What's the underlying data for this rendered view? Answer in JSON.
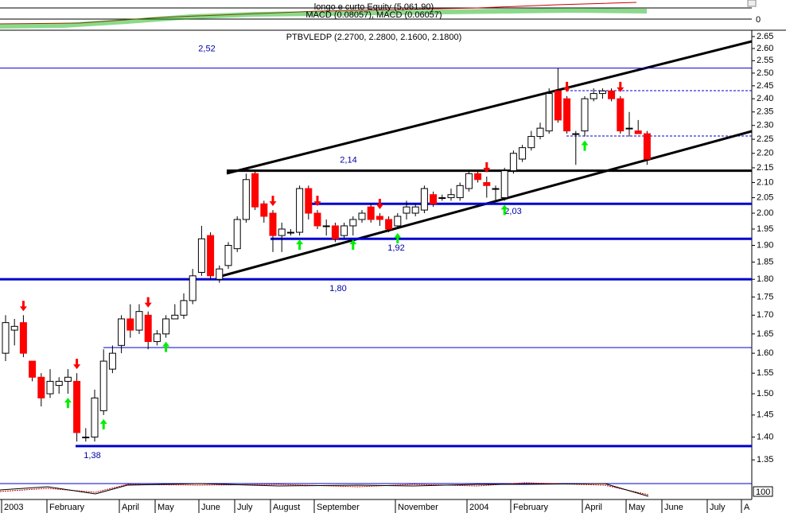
{
  "chart_data": {
    "type": "candlestick",
    "title": "PTBVLEDP (2.2700, 2.2800, 2.1600, 2.1800)",
    "log_scale": true,
    "up_color": "#ffffff",
    "down_color": "#ff0000",
    "ylim": [
      1.3,
      2.67
    ],
    "yticks": [
      2.65,
      {
        "value": 2.6,
        "label": "2.60"
      },
      2.55,
      {
        "value": 2.5,
        "label": "2.50"
      },
      2.45,
      {
        "value": 2.4,
        "label": "2.40"
      },
      2.35,
      {
        "value": 2.3,
        "label": "2.30"
      },
      2.25,
      {
        "value": 2.2,
        "label": "2.20"
      },
      2.15,
      {
        "value": 2.1,
        "label": "2.10"
      },
      2.05,
      {
        "value": 2,
        "label": "2.00"
      },
      1.95,
      {
        "value": 1.9,
        "label": "1.90"
      },
      1.85,
      {
        "value": 1.8,
        "label": "1.80"
      },
      1.75,
      {
        "value": 1.7,
        "label": "1.70"
      },
      1.65,
      {
        "value": 1.6,
        "label": "1.60"
      },
      1.55,
      {
        "value": 1.5,
        "label": "1.50"
      },
      1.45,
      {
        "value": 1.4,
        "label": "1.40"
      },
      1.35
    ],
    "x_labels": [
      "2003",
      "February",
      "April",
      "May",
      "June",
      "July",
      "August",
      "September",
      "November",
      "2004",
      "February",
      "April",
      "May",
      "June",
      "July",
      "A"
    ],
    "open": [
      1.6,
      1.66,
      1.68,
      1.58,
      1.54,
      1.5,
      1.52,
      1.53,
      1.53,
      1.4,
      1.4,
      1.46,
      1.56,
      1.62,
      1.69,
      1.66,
      1.7,
      1.63,
      1.65,
      1.69,
      1.7,
      1.74,
      1.82,
      1.93,
      1.8,
      1.84,
      1.89,
      1.98,
      2.13,
      2.03,
      2.0,
      1.93,
      1.94,
      1.94,
      2.08,
      2.0,
      1.96,
      1.96,
      1.93,
      1.96,
      1.98,
      2.02,
      1.99,
      1.98,
      1.96,
      2.0,
      2.0,
      2.01,
      2.06,
      2.05,
      2.05,
      2.05,
      2.08,
      2.13,
      2.1,
      2.08,
      2.05,
      2.14,
      2.18,
      2.22,
      2.26,
      2.28,
      2.43,
      2.4,
      2.27,
      2.28,
      2.4,
      2.42,
      2.43,
      2.4,
      2.29,
      2.28,
      2.27
    ],
    "high": [
      1.7,
      1.69,
      1.7,
      1.58,
      1.55,
      1.56,
      1.54,
      1.56,
      1.55,
      1.42,
      1.51,
      1.61,
      1.62,
      1.7,
      1.73,
      1.73,
      1.71,
      1.66,
      1.7,
      1.73,
      1.76,
      1.83,
      1.96,
      1.94,
      1.84,
      1.91,
      1.99,
      2.13,
      2.14,
      2.04,
      2.01,
      1.97,
      1.95,
      2.09,
      2.09,
      2.01,
      1.98,
      1.97,
      1.97,
      1.99,
      2.01,
      2.03,
      2.0,
      1.99,
      2.0,
      2.04,
      2.03,
      2.09,
      2.07,
      2.06,
      2.08,
      2.1,
      2.14,
      2.14,
      2.12,
      2.09,
      2.15,
      2.21,
      2.23,
      2.28,
      2.31,
      2.44,
      2.52,
      2.41,
      2.28,
      2.41,
      2.44,
      2.44,
      2.44,
      2.41,
      2.35,
      2.32,
      2.28
    ],
    "low": [
      1.58,
      1.62,
      1.59,
      1.53,
      1.47,
      1.49,
      1.5,
      1.5,
      1.39,
      1.39,
      1.39,
      1.45,
      1.55,
      1.6,
      1.64,
      1.65,
      1.61,
      1.62,
      1.64,
      1.69,
      1.69,
      1.73,
      1.81,
      1.8,
      1.79,
      1.83,
      1.88,
      1.97,
      2.01,
      1.97,
      1.88,
      1.88,
      1.93,
      1.93,
      1.98,
      1.95,
      1.93,
      1.91,
      1.92,
      1.93,
      1.97,
      1.97,
      1.96,
      1.94,
      1.95,
      1.98,
      1.99,
      2.0,
      2.02,
      2.04,
      2.04,
      2.04,
      2.07,
      2.1,
      2.05,
      2.04,
      2.04,
      2.13,
      2.17,
      2.21,
      2.25,
      2.27,
      2.31,
      2.27,
      2.16,
      2.26,
      2.39,
      2.4,
      2.39,
      2.27,
      2.26,
      2.27,
      2.16
    ],
    "close": [
      1.68,
      1.67,
      1.6,
      1.54,
      1.49,
      1.53,
      1.53,
      1.54,
      1.41,
      1.4,
      1.49,
      1.58,
      1.6,
      1.69,
      1.66,
      1.71,
      1.63,
      1.65,
      1.69,
      1.7,
      1.74,
      1.81,
      1.92,
      1.81,
      1.83,
      1.9,
      1.98,
      2.11,
      2.02,
      1.99,
      1.93,
      1.95,
      1.94,
      2.08,
      2.0,
      1.96,
      1.96,
      1.92,
      1.96,
      1.98,
      2.0,
      1.98,
      1.98,
      1.95,
      1.99,
      2.02,
      2.02,
      2.08,
      2.03,
      2.05,
      2.06,
      2.09,
      2.13,
      2.11,
      2.09,
      2.08,
      2.14,
      2.2,
      2.22,
      2.26,
      2.29,
      2.42,
      2.32,
      2.28,
      2.27,
      2.4,
      2.42,
      2.43,
      2.4,
      2.28,
      2.29,
      2.27,
      2.18
    ],
    "levels": [
      {
        "value": 2.52,
        "label": "2,52",
        "color": "#0000cc"
      },
      {
        "value": 2.14,
        "label": "2,14",
        "color": "#000000"
      },
      {
        "value": 2.03,
        "label": "2,03",
        "color": "#0000cc"
      },
      {
        "value": 1.92,
        "label": "1,92",
        "color": "#0000cc"
      },
      {
        "value": 1.8,
        "label": "1,80",
        "color": "#0000cc"
      },
      {
        "value": 1.38,
        "label": "1,38",
        "color": "#0000cc"
      }
    ],
    "upper_panel": {
      "title": "longo e curto Equity (5,061.90)",
      "subtitle": "MACD (0.08057), MACD (0.06057)",
      "ytick": "0"
    },
    "lower_panel": {
      "ytick": "100"
    }
  }
}
